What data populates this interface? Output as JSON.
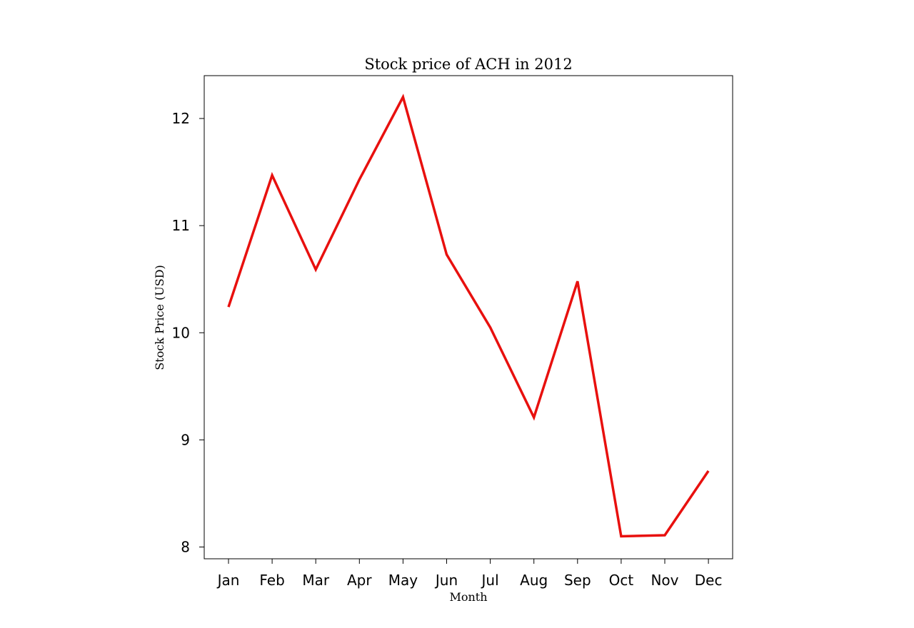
{
  "chart_data": {
    "type": "line",
    "title": "Stock price of ACH in 2012",
    "xlabel": "Month",
    "ylabel": "Stock Price (USD)",
    "categories": [
      "Jan",
      "Feb",
      "Mar",
      "Apr",
      "May",
      "Jun",
      "Jul",
      "Aug",
      "Sep",
      "Oct",
      "Nov",
      "Dec"
    ],
    "series": [
      {
        "color": "#e8100e",
        "values": [
          10.24,
          11.47,
          10.59,
          11.43,
          12.2,
          10.73,
          10.05,
          9.21,
          10.48,
          8.1,
          8.11,
          8.71
        ]
      }
    ],
    "yticks": [
      8,
      9,
      10,
      11,
      12
    ],
    "ylim": [
      7.89,
      12.4
    ],
    "grid": false,
    "legend": "none"
  }
}
